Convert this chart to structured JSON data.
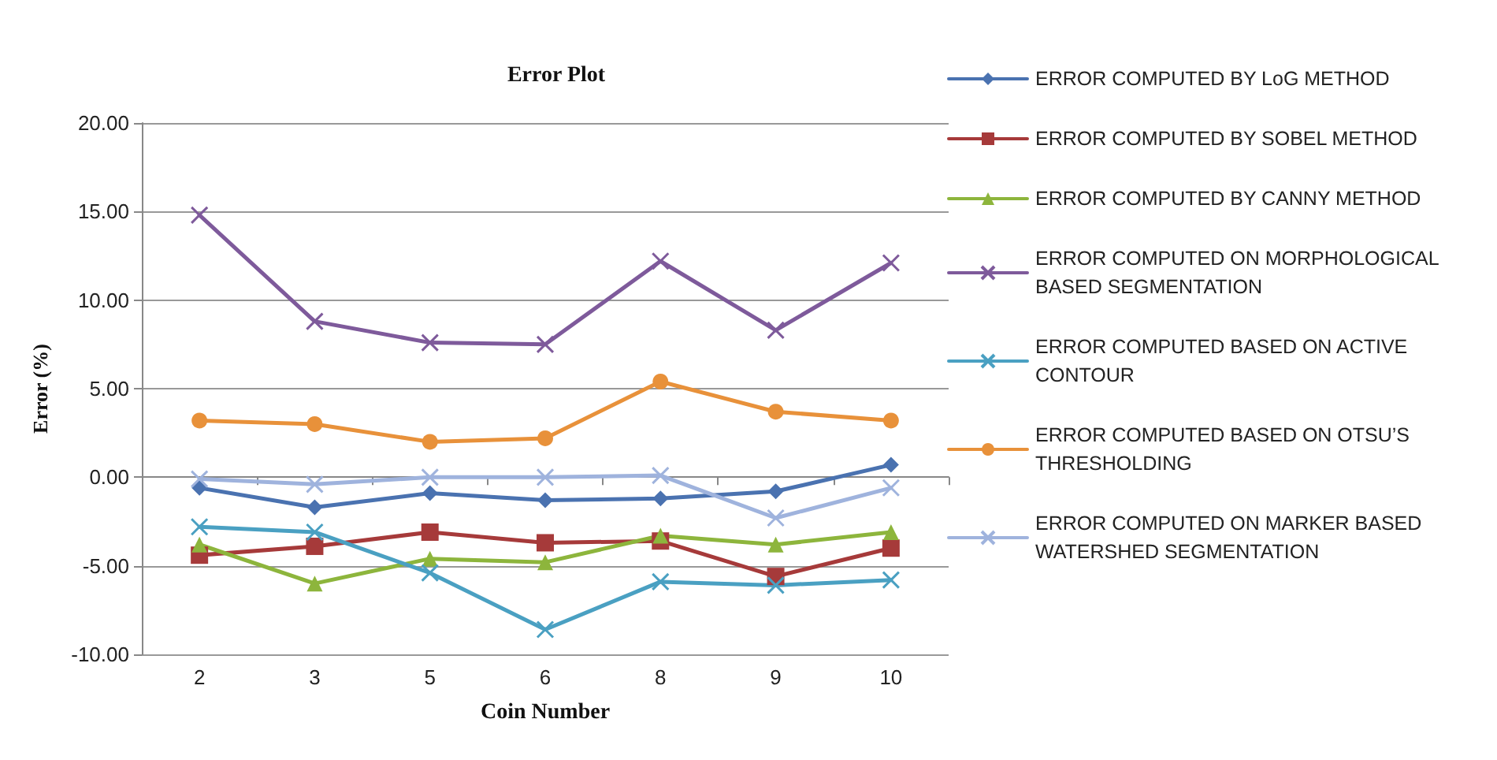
{
  "chart_data": {
    "type": "line",
    "title": "Error Plot",
    "xlabel": "Coin Number",
    "ylabel": "Error (%)",
    "categories": [
      "2",
      "3",
      "5",
      "6",
      "8",
      "9",
      "10"
    ],
    "ylim": [
      -10,
      20
    ],
    "yticks": [
      {
        "value": -10,
        "label": "-10.00"
      },
      {
        "value": -5,
        "label": "-5.00"
      },
      {
        "value": 0,
        "label": "0.00"
      },
      {
        "value": 5,
        "label": "5.00"
      },
      {
        "value": 10,
        "label": "10.00"
      },
      {
        "value": 15,
        "label": "15.00"
      },
      {
        "value": 20,
        "label": "20.00"
      }
    ],
    "grid": "y",
    "legend": "right",
    "series": [
      {
        "name": "ERROR COMPUTED BY LoG METHOD",
        "color": "#4a72b0",
        "marker": "diamond",
        "values": [
          -0.6,
          -1.7,
          -0.9,
          -1.3,
          -1.2,
          -0.8,
          0.7
        ]
      },
      {
        "name": "ERROR COMPUTED BY SOBEL METHOD",
        "color": "#a63a3a",
        "marker": "square",
        "values": [
          -4.4,
          -3.9,
          -3.1,
          -3.7,
          -3.6,
          -5.6,
          -4.0
        ]
      },
      {
        "name": "ERROR COMPUTED BY CANNY METHOD",
        "color": "#8db53c",
        "marker": "triangle",
        "values": [
          -3.8,
          -6.0,
          -4.6,
          -4.8,
          -3.3,
          -3.8,
          -3.1
        ]
      },
      {
        "name": "ERROR COMPUTED ON MORPHOLOGICAL BASED SEGMENTATION",
        "color": "#7e5a9b",
        "marker": "cross",
        "values": [
          14.8,
          8.8,
          7.6,
          7.5,
          12.2,
          8.3,
          12.1
        ]
      },
      {
        "name": "ERROR COMPUTED BASED ON ACTIVE CONTOUR",
        "color": "#4aa0c2",
        "marker": "cross",
        "values": [
          -2.8,
          -3.1,
          -5.4,
          -8.6,
          -5.9,
          -6.1,
          -5.8
        ]
      },
      {
        "name": "ERROR COMPUTED BASED ON OTSU’S THRESHOLDING",
        "color": "#e8913a",
        "marker": "circle",
        "values": [
          3.2,
          3.0,
          2.0,
          2.2,
          5.4,
          3.7,
          3.2
        ]
      },
      {
        "name": "ERROR COMPUTED ON MARKER BASED WATERSHED SEGMENTATION",
        "color": "#9fb3dd",
        "marker": "cross",
        "values": [
          -0.1,
          -0.4,
          0.0,
          0.0,
          0.1,
          -2.3,
          -0.6
        ]
      }
    ]
  }
}
